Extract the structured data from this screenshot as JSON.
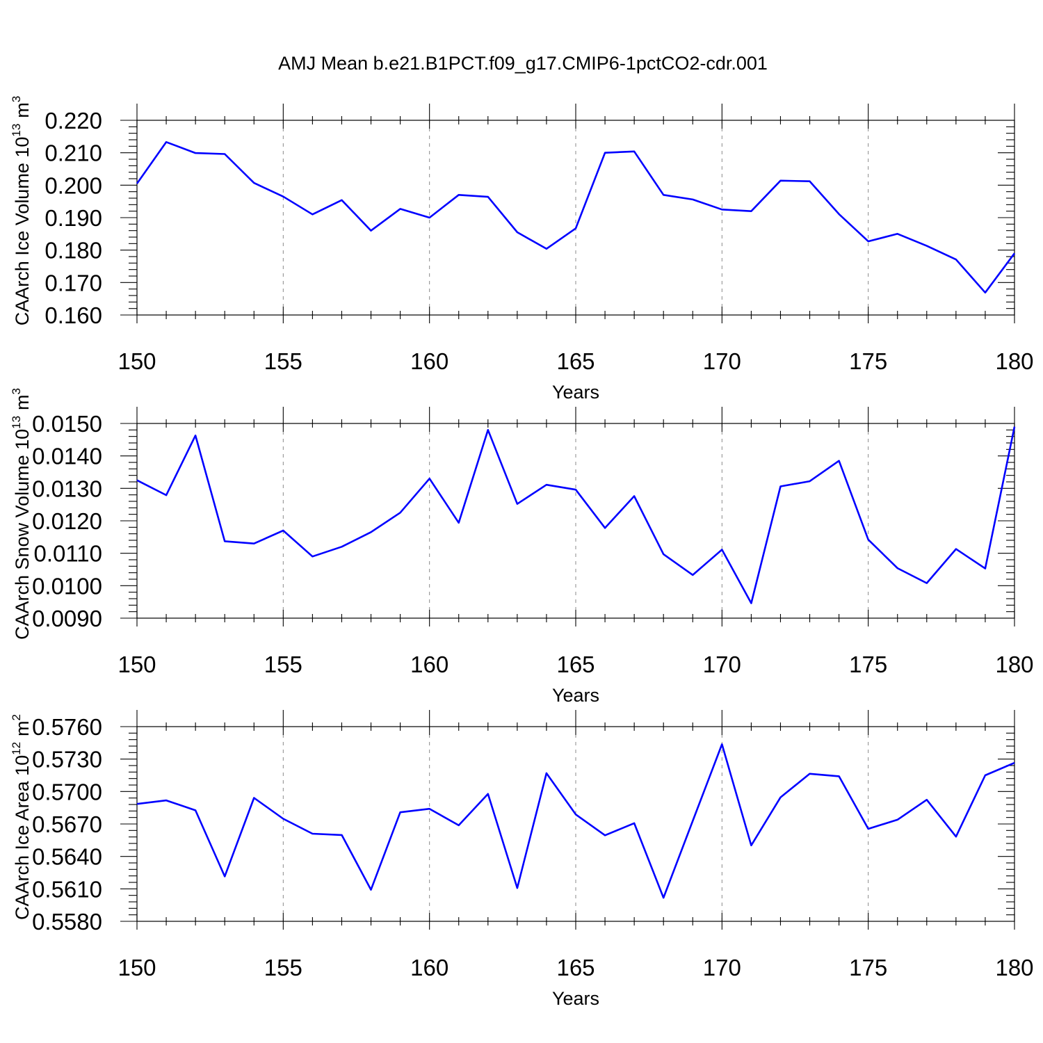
{
  "title": "AMJ Mean b.e21.B1PCT.f09_g17.CMIP6-1pctCO2-cdr.001",
  "colors": {
    "series": "#0000ff",
    "axis": "#000000",
    "grid": "#888888"
  },
  "chart_data": [
    {
      "type": "line",
      "ylabel": "CAArch Ice Volume 10",
      "ylabel_exponent": "13",
      "ylabel_unit": "m",
      "ylabel_unit_exponent": "3",
      "xlabel": "Years",
      "xlim": [
        150,
        180
      ],
      "ylim": [
        0.16,
        0.22
      ],
      "grid": "dashed vertical at major x ticks",
      "x_ticks": [
        150,
        155,
        160,
        165,
        170,
        175,
        180
      ],
      "x_tick_labels": [
        "150",
        "155",
        "160",
        "165",
        "170",
        "175",
        "180"
      ],
      "y_ticks": [
        0.16,
        0.17,
        0.18,
        0.19,
        0.2,
        0.21,
        0.22
      ],
      "y_tick_labels": [
        "0.160",
        "0.170",
        "0.180",
        "0.190",
        "0.200",
        "0.210",
        "0.220"
      ],
      "series": [
        {
          "name": "ice_volume",
          "x": [
            150,
            151,
            152,
            153,
            154,
            155,
            156,
            157,
            158,
            159,
            160,
            161,
            162,
            163,
            164,
            165,
            166,
            167,
            168,
            169,
            170,
            171,
            172,
            173,
            174,
            175,
            176,
            177,
            178,
            179,
            180
          ],
          "values": [
            0.2005,
            0.2133,
            0.2099,
            0.2096,
            0.2007,
            0.1965,
            0.191,
            0.1954,
            0.186,
            0.1927,
            0.19,
            0.197,
            0.1964,
            0.1855,
            0.1804,
            0.1867,
            0.21,
            0.2104,
            0.197,
            0.1956,
            0.1925,
            0.192,
            0.2014,
            0.2012,
            0.1911,
            0.1827,
            0.185,
            0.1813,
            0.1771,
            0.1669,
            0.179
          ]
        }
      ]
    },
    {
      "type": "line",
      "ylabel": "CAArch Snow Volume 10",
      "ylabel_exponent": "13",
      "ylabel_unit": "m",
      "ylabel_unit_exponent": "3",
      "xlabel": "Years",
      "xlim": [
        150,
        180
      ],
      "ylim": [
        0.009,
        0.015
      ],
      "grid": "dashed vertical at major x ticks",
      "x_ticks": [
        150,
        155,
        160,
        165,
        170,
        175,
        180
      ],
      "x_tick_labels": [
        "150",
        "155",
        "160",
        "165",
        "170",
        "175",
        "180"
      ],
      "y_ticks": [
        0.009,
        0.01,
        0.011,
        0.012,
        0.013,
        0.014,
        0.015
      ],
      "y_tick_labels": [
        "0.0090",
        "0.0100",
        "0.0110",
        "0.0120",
        "0.0130",
        "0.0140",
        "0.0150"
      ],
      "series": [
        {
          "name": "snow_volume",
          "x": [
            150,
            151,
            152,
            153,
            154,
            155,
            156,
            157,
            158,
            159,
            160,
            161,
            162,
            163,
            164,
            165,
            166,
            167,
            168,
            169,
            170,
            171,
            172,
            173,
            174,
            175,
            176,
            177,
            178,
            179,
            180
          ],
          "values": [
            0.01325,
            0.01279,
            0.01463,
            0.01137,
            0.0113,
            0.0117,
            0.0109,
            0.0112,
            0.01165,
            0.01225,
            0.0133,
            0.01194,
            0.0148,
            0.01252,
            0.01311,
            0.01296,
            0.01178,
            0.01276,
            0.01097,
            0.01033,
            0.01111,
            0.00946,
            0.01306,
            0.01322,
            0.01385,
            0.01142,
            0.01054,
            0.01008,
            0.01113,
            0.01053,
            0.0149
          ]
        }
      ]
    },
    {
      "type": "line",
      "ylabel": "CAArch Ice Area 10",
      "ylabel_exponent": "12",
      "ylabel_unit": "m",
      "ylabel_unit_exponent": "2",
      "xlabel": "Years",
      "xlim": [
        150,
        180
      ],
      "ylim": [
        0.558,
        0.576
      ],
      "grid": "dashed vertical at major x ticks",
      "x_ticks": [
        150,
        155,
        160,
        165,
        170,
        175,
        180
      ],
      "x_tick_labels": [
        "150",
        "155",
        "160",
        "165",
        "170",
        "175",
        "180"
      ],
      "y_ticks": [
        0.558,
        0.561,
        0.564,
        0.567,
        0.57,
        0.573,
        0.576
      ],
      "y_tick_labels": [
        "0.5580",
        "0.5610",
        "0.5640",
        "0.5670",
        "0.5700",
        "0.5730",
        "0.5760"
      ],
      "series": [
        {
          "name": "ice_area",
          "x": [
            150,
            151,
            152,
            153,
            154,
            155,
            156,
            157,
            158,
            159,
            160,
            161,
            162,
            163,
            164,
            165,
            166,
            167,
            168,
            169,
            170,
            171,
            172,
            173,
            174,
            175,
            176,
            177,
            178,
            179,
            180
          ],
          "values": [
            0.56885,
            0.56918,
            0.56826,
            0.56215,
            0.56941,
            0.56748,
            0.5661,
            0.56598,
            0.56092,
            0.56808,
            0.5684,
            0.56688,
            0.56978,
            0.56108,
            0.57169,
            0.56788,
            0.56595,
            0.56707,
            0.56018,
            0.56729,
            0.57437,
            0.56502,
            0.56946,
            0.57164,
            0.57141,
            0.56655,
            0.56739,
            0.56924,
            0.56583,
            0.5715,
            0.57265
          ]
        }
      ]
    }
  ]
}
